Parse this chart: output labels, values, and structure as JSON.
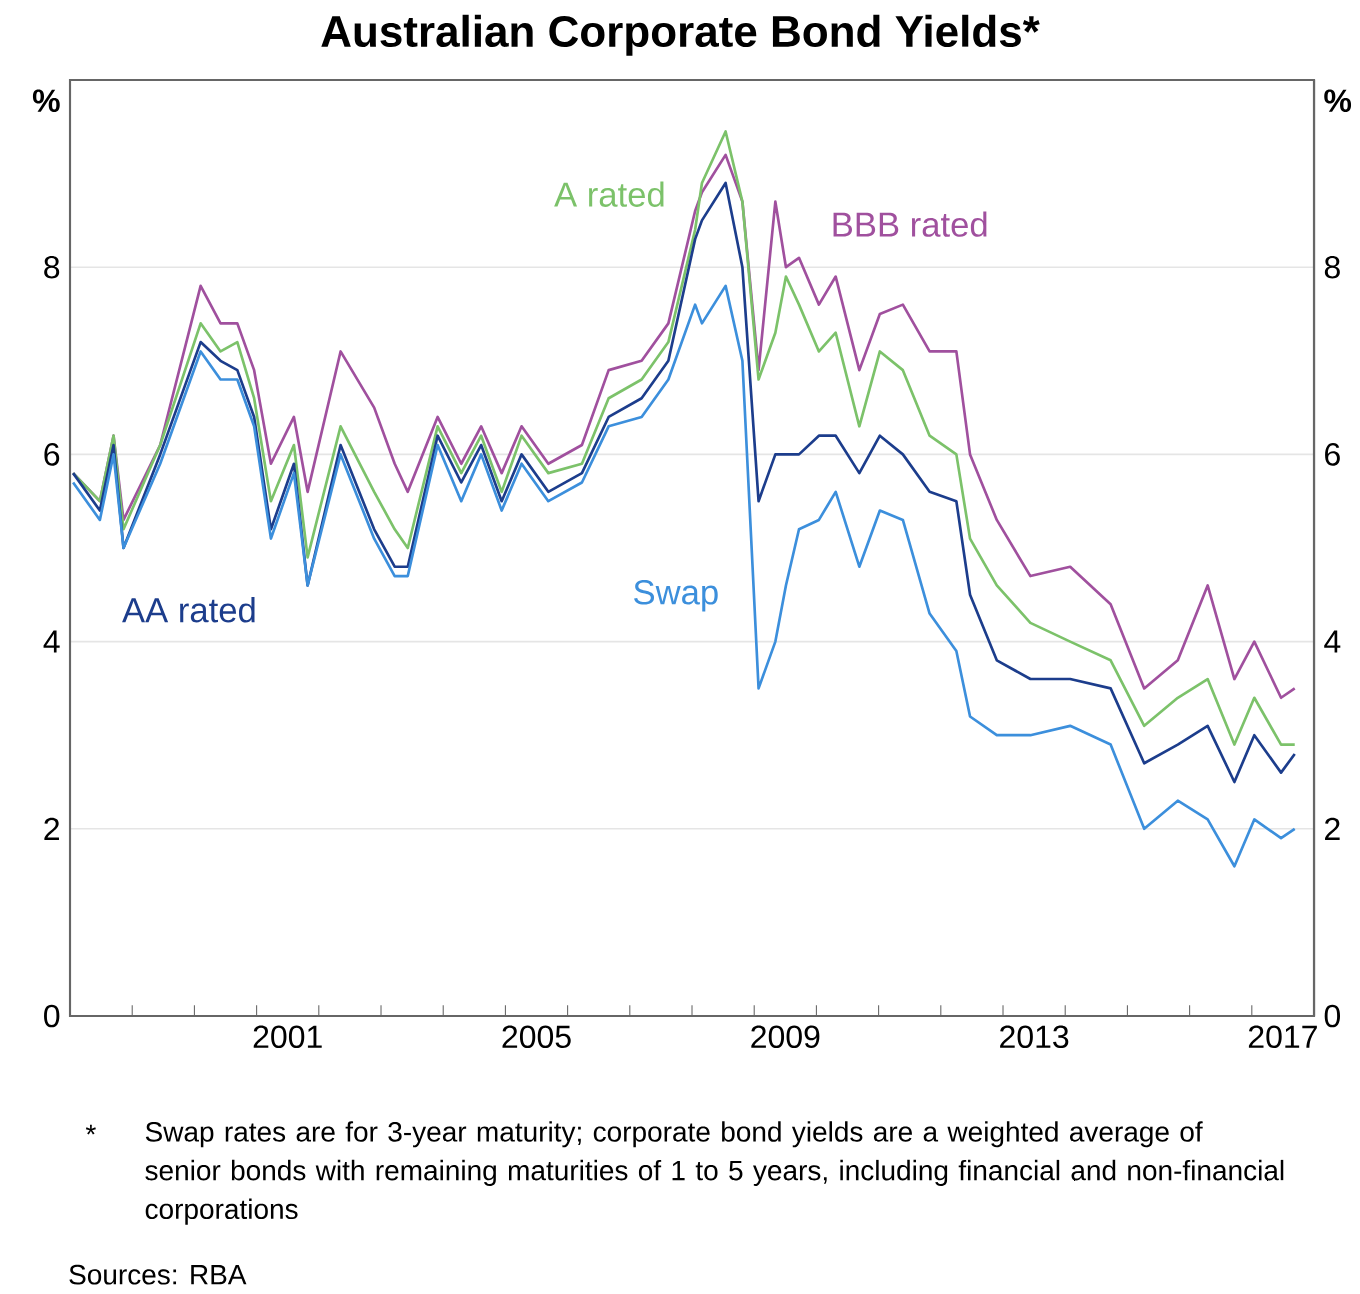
{
  "chart_data": {
    "type": "line",
    "title": "Australian Corporate Bond Yields*",
    "ylabel": "%",
    "y2label": "%",
    "x": [
      1998.05,
      1998.48,
      1998.7,
      1998.86,
      1999.45,
      2000.1,
      2000.42,
      2000.69,
      2000.96,
      2001.23,
      2001.6,
      2001.82,
      2002.35,
      2002.89,
      2003.22,
      2003.43,
      2003.91,
      2004.29,
      2004.61,
      2004.94,
      2005.26,
      2005.69,
      2006.23,
      2006.66,
      2007.19,
      2007.62,
      2008.05,
      2008.16,
      2008.54,
      2008.81,
      2009.07,
      2009.34,
      2009.51,
      2009.72,
      2010.04,
      2010.31,
      2010.69,
      2011.02,
      2011.39,
      2011.82,
      2012.25,
      2012.47,
      2012.9,
      2013.44,
      2014.08,
      2014.73,
      2015.27,
      2015.81,
      2016.29,
      2016.72,
      2017.04,
      2017.47,
      2017.69
    ],
    "series": [
      {
        "name": "BBB rated",
        "color": "#a0509e",
        "values": [
          5.8,
          5.5,
          6.2,
          5.3,
          6.1,
          7.8,
          7.4,
          7.4,
          6.9,
          5.9,
          6.4,
          5.6,
          7.1,
          6.5,
          5.9,
          5.6,
          6.4,
          5.9,
          6.3,
          5.8,
          6.3,
          5.9,
          6.1,
          6.9,
          7.0,
          7.4,
          8.6,
          8.8,
          9.2,
          8.7,
          6.9,
          8.7,
          8.0,
          8.1,
          7.6,
          7.9,
          6.9,
          7.5,
          7.6,
          7.1,
          7.1,
          6.0,
          5.3,
          4.7,
          4.8,
          4.4,
          3.5,
          3.8,
          4.6,
          3.6,
          4.0,
          3.4,
          3.5
        ]
      },
      {
        "name": "A rated",
        "color": "#7cc26a",
        "values": [
          5.8,
          5.5,
          6.2,
          5.2,
          6.1,
          7.4,
          7.1,
          7.2,
          6.6,
          5.5,
          6.1,
          4.9,
          6.3,
          5.6,
          5.2,
          5.0,
          6.3,
          5.8,
          6.2,
          5.6,
          6.2,
          5.8,
          5.9,
          6.6,
          6.8,
          7.2,
          8.4,
          8.9,
          9.45,
          8.7,
          6.8,
          7.3,
          7.9,
          7.6,
          7.1,
          7.3,
          6.3,
          7.1,
          6.9,
          6.2,
          6.0,
          5.1,
          4.6,
          4.2,
          4.0,
          3.8,
          3.1,
          3.4,
          3.6,
          2.9,
          3.4,
          2.9,
          2.9
        ]
      },
      {
        "name": "AA rated",
        "color": "#1c3d8c",
        "values": [
          5.8,
          5.4,
          6.1,
          5.0,
          6.0,
          7.2,
          7.0,
          6.9,
          6.4,
          5.2,
          5.9,
          4.6,
          6.1,
          5.2,
          4.8,
          4.8,
          6.2,
          5.7,
          6.1,
          5.5,
          6.0,
          5.6,
          5.8,
          6.4,
          6.6,
          7.0,
          8.3,
          8.5,
          8.9,
          8.0,
          5.5,
          6.0,
          6.0,
          6.0,
          6.2,
          6.2,
          5.8,
          6.2,
          6.0,
          5.6,
          5.5,
          4.5,
          3.8,
          3.6,
          3.6,
          3.5,
          2.7,
          2.9,
          3.1,
          2.5,
          3.0,
          2.6,
          2.8
        ]
      },
      {
        "name": "Swap",
        "color": "#3c8fdc",
        "values": [
          5.7,
          5.3,
          6.0,
          5.0,
          5.9,
          7.1,
          6.8,
          6.8,
          6.3,
          5.1,
          5.8,
          4.6,
          6.0,
          5.1,
          4.7,
          4.7,
          6.1,
          5.5,
          6.0,
          5.4,
          5.9,
          5.5,
          5.7,
          6.3,
          6.4,
          6.8,
          7.6,
          7.4,
          7.8,
          7.0,
          3.5,
          4.0,
          4.6,
          5.2,
          5.3,
          5.6,
          4.8,
          5.4,
          5.3,
          4.3,
          3.9,
          3.2,
          3.0,
          3.0,
          3.1,
          2.9,
          2.0,
          2.3,
          2.1,
          1.6,
          2.1,
          1.9,
          2.0
        ]
      }
    ],
    "xlim": [
      1998,
      2018
    ],
    "xticks": [
      {
        "value": 1999,
        "label": null
      },
      {
        "value": 2000,
        "label": null
      },
      {
        "value": 2001,
        "label": null
      },
      {
        "value": 2002,
        "label": null
      },
      {
        "value": 2003,
        "label": null
      },
      {
        "value": 2004,
        "label": null
      },
      {
        "value": 2005,
        "label": null
      },
      {
        "value": 2006,
        "label": null
      },
      {
        "value": 2007,
        "label": null
      },
      {
        "value": 2008,
        "label": null
      },
      {
        "value": 2009,
        "label": null
      },
      {
        "value": 2010,
        "label": null
      },
      {
        "value": 2011,
        "label": null
      },
      {
        "value": 2012,
        "label": null
      },
      {
        "value": 2013,
        "label": null
      },
      {
        "value": 2014,
        "label": null
      },
      {
        "value": 2015,
        "label": null
      },
      {
        "value": 2016,
        "label": null
      },
      {
        "value": 2017,
        "label": null
      },
      {
        "value": 2001.5,
        "label": "2001"
      },
      {
        "value": 2005.5,
        "label": "2005"
      },
      {
        "value": 2009.5,
        "label": "2009"
      },
      {
        "value": 2013.5,
        "label": "2013"
      },
      {
        "value": 2017.5,
        "label": "2017"
      }
    ],
    "ylim": [
      0,
      10
    ],
    "yticks": [
      0,
      2,
      4,
      6,
      8
    ],
    "y2lim": [
      0,
      10
    ],
    "y2ticks": [
      0,
      2,
      4,
      6,
      8
    ],
    "grid": "y",
    "marker": "none",
    "line_style": "solid",
    "annotations": [
      "*",
      "Swap rates are for 3-year maturity; corporate bond yields are a weighted average of senior bonds with remaining maturities of 1 to 5 years, including financial and non-financial corporations",
      "Sources: RBA"
    ]
  }
}
